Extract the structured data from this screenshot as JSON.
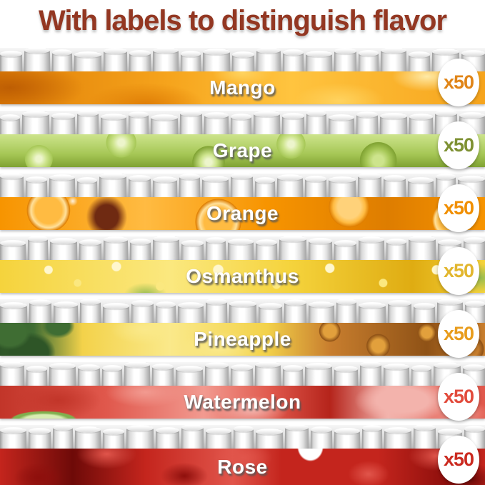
{
  "title": {
    "text": "With labels to distinguish flavor",
    "color": "#933722"
  },
  "label_color": "#FFFFFF",
  "flavors": [
    {
      "key": "mango",
      "name": "Mango",
      "count": "x50",
      "accent": "#E08518",
      "palette": [
        "#F6A41C",
        "#FFD35F",
        "#FFEAA6",
        "#E07F07",
        "#BE5E03",
        "#FFC43F",
        "#D97A06"
      ]
    },
    {
      "key": "grape",
      "name": "Grape",
      "count": "x50",
      "accent": "#7E9133",
      "palette": [
        "#A6C756",
        "#CDE48C",
        "#EDF5CC",
        "#7FA232",
        "#628A24",
        "#B9D870",
        "#8FB23B"
      ]
    },
    {
      "key": "orange",
      "name": "Orange",
      "count": "x50",
      "accent": "#F18F00",
      "palette": [
        "#F79400",
        "#FFBB42",
        "#FFE09A",
        "#DE7D00",
        "#C05F00",
        "#FFD27A",
        "#6F2A12"
      ]
    },
    {
      "key": "osmanthus",
      "name": "Osmanthus",
      "count": "x50",
      "accent": "#E2B62E",
      "palette": [
        "#F5D33C",
        "#FBE87F",
        "#FFF7CE",
        "#DFAC12",
        "#97BC50",
        "#EFC722",
        "#E9B81A"
      ]
    },
    {
      "key": "pineapple",
      "name": "Pineapple",
      "count": "x50",
      "accent": "#E89C1C",
      "palette": [
        "#F3D24A",
        "#FAE98A",
        "#C87E2E",
        "#8F5216",
        "#3F6D33",
        "#E2A03C",
        "#2E5527"
      ]
    },
    {
      "key": "watermelon",
      "name": "Watermelon",
      "count": "x50",
      "accent": "#E24B3C",
      "palette": [
        "#E0584C",
        "#F29A90",
        "#F3B3AC",
        "#C23529",
        "#7FB04E",
        "#D9EDB2",
        "#B5241B"
      ]
    },
    {
      "key": "rose",
      "name": "Rose",
      "count": "x50",
      "accent": "#CB2A20",
      "palette": [
        "#C4251D",
        "#E1554B",
        "#F08078",
        "#8E0F0C",
        "#FFFFFF",
        "#6E0A08",
        "#A81712"
      ]
    }
  ]
}
